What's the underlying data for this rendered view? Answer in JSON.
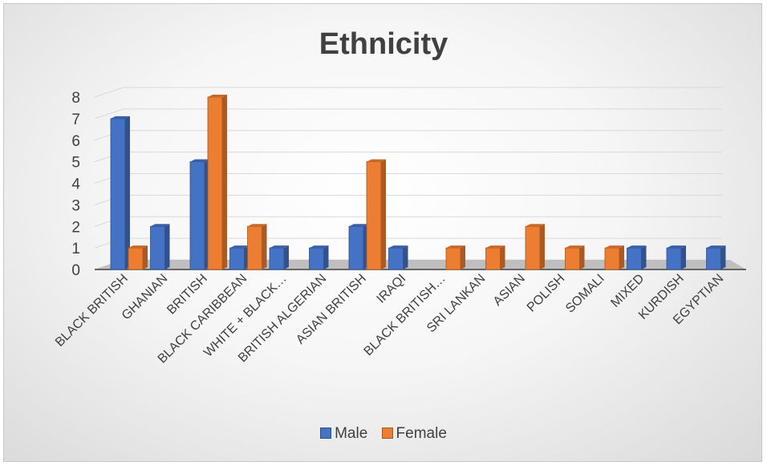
{
  "chart_data": {
    "type": "bar",
    "title": "Ethnicity",
    "categories": [
      "BLACK BRITISH",
      "GHANIAN",
      "BRITISH",
      "BLACK CARIBBEAN",
      "WHITE + BLACK…",
      "BRITISH ALGERIAN",
      "ASIAN BRITISH",
      "IRAQI",
      "BLACK BRITISH…",
      "SRI LANKAN",
      "ASIAN",
      "POLISH",
      "SOMALI",
      "MIXED",
      "KURDISH",
      "EGYPTIAN"
    ],
    "series": [
      {
        "name": "Male",
        "color": "#4472c4",
        "values": [
          7,
          2,
          5,
          1,
          1,
          1,
          2,
          1,
          0,
          0,
          0,
          0,
          0,
          1,
          1,
          1
        ]
      },
      {
        "name": "Female",
        "color": "#ed7d31",
        "values": [
          1,
          0,
          8,
          2,
          0,
          0,
          5,
          0,
          1,
          1,
          2,
          1,
          1,
          0,
          0,
          0
        ]
      }
    ],
    "yticks": [
      0,
      1,
      2,
      3,
      4,
      5,
      6,
      7,
      8
    ],
    "ylim": [
      0,
      8
    ],
    "legend_position": "bottom",
    "grid": true
  }
}
